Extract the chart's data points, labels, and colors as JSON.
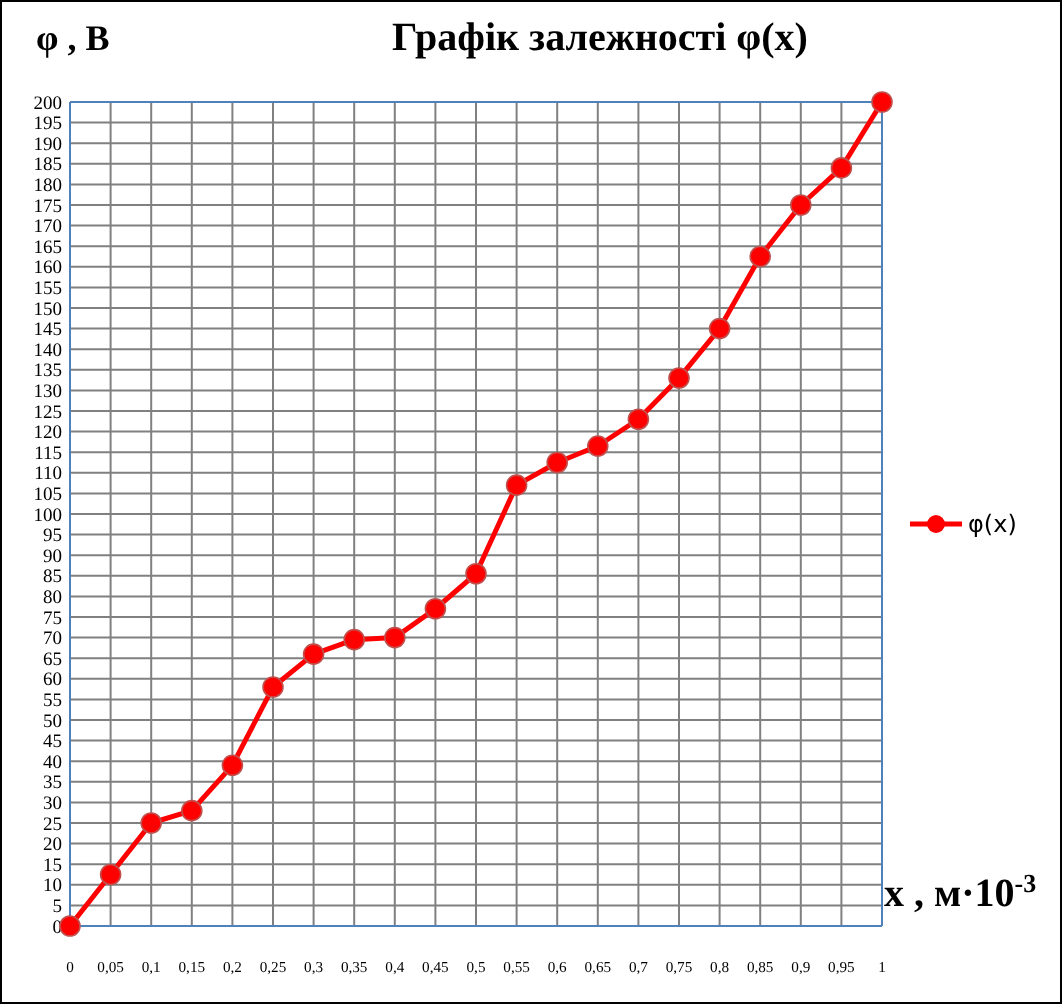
{
  "chart_data": {
    "type": "line",
    "title": "Графік залежності  φ(x)",
    "ylabel": "φ , В",
    "xlabel": "x , м·10$^{-3}$",
    "categories": [
      "0",
      "0,05",
      "0,1",
      "0,15",
      "0,2",
      "0,25",
      "0,3",
      "0,35",
      "0,4",
      "0,45",
      "0,5",
      "0,55",
      "0,6",
      "0,65",
      "0,7",
      "0,75",
      "0,8",
      "0,85",
      "0,9",
      "0,95",
      "1"
    ],
    "series": [
      {
        "name": "φ(x)",
        "color": "#ff0000",
        "values": [
          0,
          12.5,
          25,
          28,
          39,
          58,
          66,
          69.5,
          70,
          77,
          85.5,
          107,
          112.5,
          116.5,
          123,
          133,
          145,
          162.5,
          175,
          184,
          200
        ]
      }
    ],
    "ylim": [
      0,
      200
    ],
    "yticks": [
      0,
      5,
      10,
      15,
      20,
      25,
      30,
      35,
      40,
      45,
      50,
      55,
      60,
      65,
      70,
      75,
      80,
      85,
      90,
      95,
      100,
      105,
      110,
      115,
      120,
      125,
      130,
      135,
      140,
      145,
      150,
      155,
      160,
      165,
      170,
      175,
      180,
      185,
      190,
      195,
      200
    ],
    "grid": true,
    "legend": "right",
    "marker": "circle",
    "line_style": "solid"
  }
}
